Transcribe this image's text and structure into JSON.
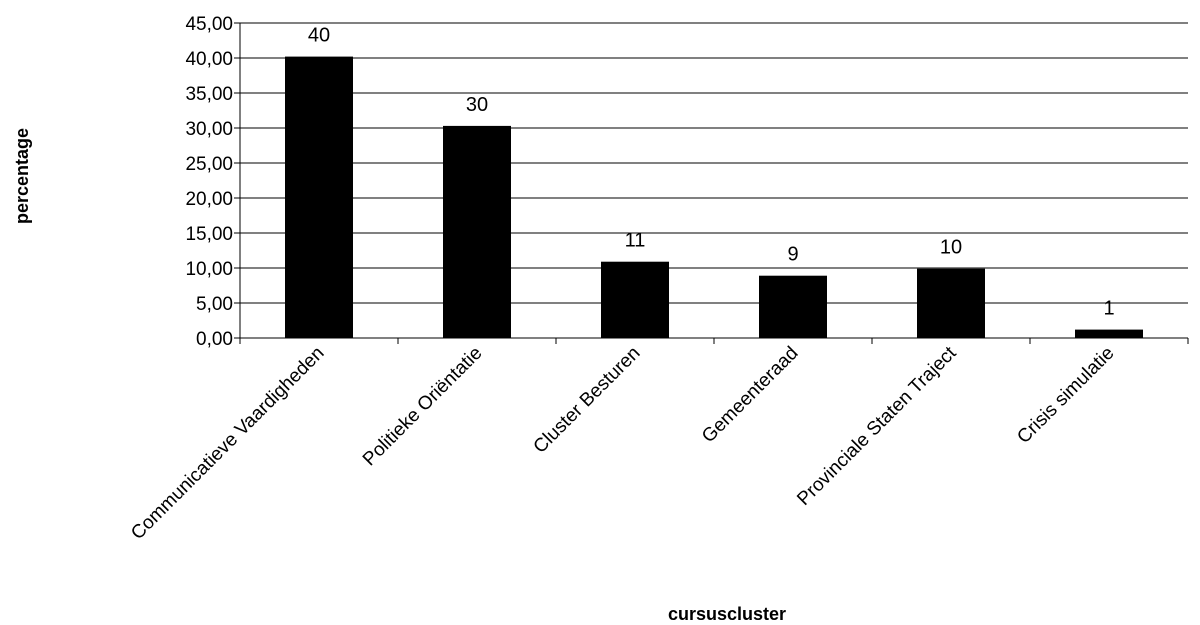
{
  "chart_data": {
    "type": "bar",
    "categories": [
      "Communicatieve Vaardigheden",
      "Politieke Oriëntatie",
      "Cluster Besturen",
      "Gemeenteraad",
      "Provinciale Staten Traject",
      "Crisis simulatie"
    ],
    "values": [
      40.2,
      30.3,
      10.9,
      8.9,
      9.9,
      1.2
    ],
    "data_labels": [
      "40",
      "30",
      "11",
      "9",
      "10",
      "1"
    ],
    "xlabel": "cursuscluster",
    "ylabel": "percentage",
    "ylim": [
      0,
      45
    ],
    "yticks": [
      "0,00",
      "5,00",
      "10,00",
      "15,00",
      "20,00",
      "25,00",
      "30,00",
      "35,00",
      "40,00",
      "45,00"
    ],
    "grid": true,
    "legend": "none",
    "colors": {
      "bar": "#000000",
      "grid": "#000000",
      "background": "#ffffff"
    }
  }
}
